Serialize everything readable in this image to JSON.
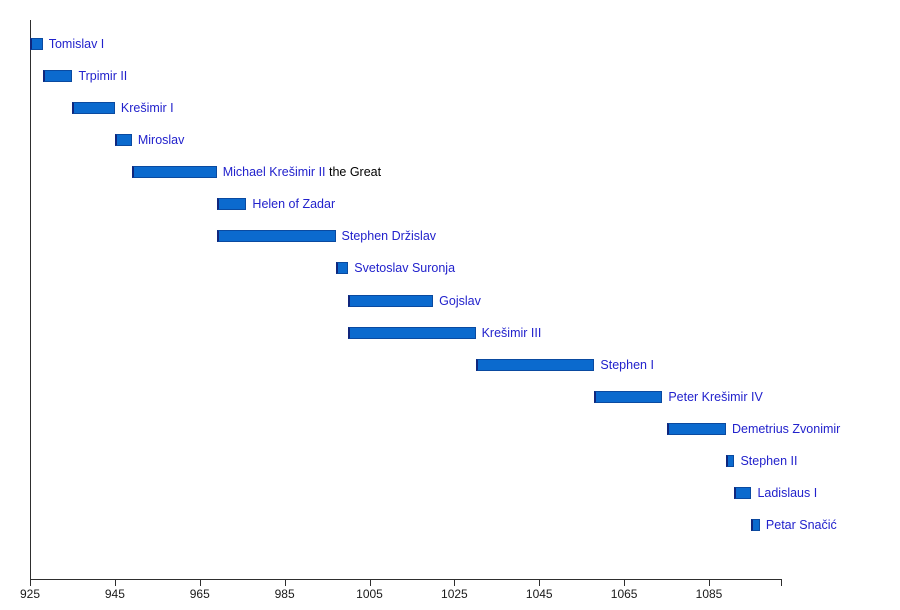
{
  "chart_data": {
    "type": "bar",
    "subtype": "horizontal-timeline",
    "title": "",
    "xlabel": "",
    "ylabel": "",
    "x_axis": {
      "min": 925,
      "max": 1102,
      "ticks": [
        925,
        945,
        965,
        985,
        1005,
        1025,
        1045,
        1065,
        1085
      ]
    },
    "bars": [
      {
        "label": "Tomislav I",
        "suffix": "",
        "start": 925,
        "end": 928
      },
      {
        "label": "Trpimir II",
        "suffix": "",
        "start": 928,
        "end": 935
      },
      {
        "label": "Krešimir I",
        "suffix": "",
        "start": 935,
        "end": 945
      },
      {
        "label": "Miroslav",
        "suffix": "",
        "start": 945,
        "end": 949
      },
      {
        "label": "Michael Krešimir II",
        "suffix": " the Great",
        "start": 949,
        "end": 969
      },
      {
        "label": "Helen of Zadar",
        "suffix": "",
        "start": 969,
        "end": 976
      },
      {
        "label": "Stephen Držislav",
        "suffix": "",
        "start": 969,
        "end": 997
      },
      {
        "label": "Svetoslav Suronja",
        "suffix": "",
        "start": 997,
        "end": 1000
      },
      {
        "label": "Gojslav",
        "suffix": "",
        "start": 1000,
        "end": 1020
      },
      {
        "label": "Krešimir III",
        "suffix": "",
        "start": 1000,
        "end": 1030
      },
      {
        "label": "Stephen I",
        "suffix": "",
        "start": 1030,
        "end": 1058
      },
      {
        "label": "Peter Krešimir IV",
        "suffix": "",
        "start": 1058,
        "end": 1074
      },
      {
        "label": "Demetrius Zvonimir",
        "suffix": "",
        "start": 1075,
        "end": 1089
      },
      {
        "label": "Stephen II",
        "suffix": "",
        "start": 1089,
        "end": 1091
      },
      {
        "label": "Ladislaus I",
        "suffix": "",
        "start": 1091,
        "end": 1095
      },
      {
        "label": "Petar Snačić",
        "suffix": "",
        "start": 1095,
        "end": 1097
      }
    ],
    "colors": {
      "bar_fill": "#0b6ace",
      "bar_border": "#0a4aa0",
      "bar_left_edge": "#10267c",
      "label": "#2222cc",
      "suffix": "#000000",
      "axis": "#2e2e2e",
      "tick_label": "#1a1a1a"
    },
    "legend": null,
    "grid": false
  }
}
